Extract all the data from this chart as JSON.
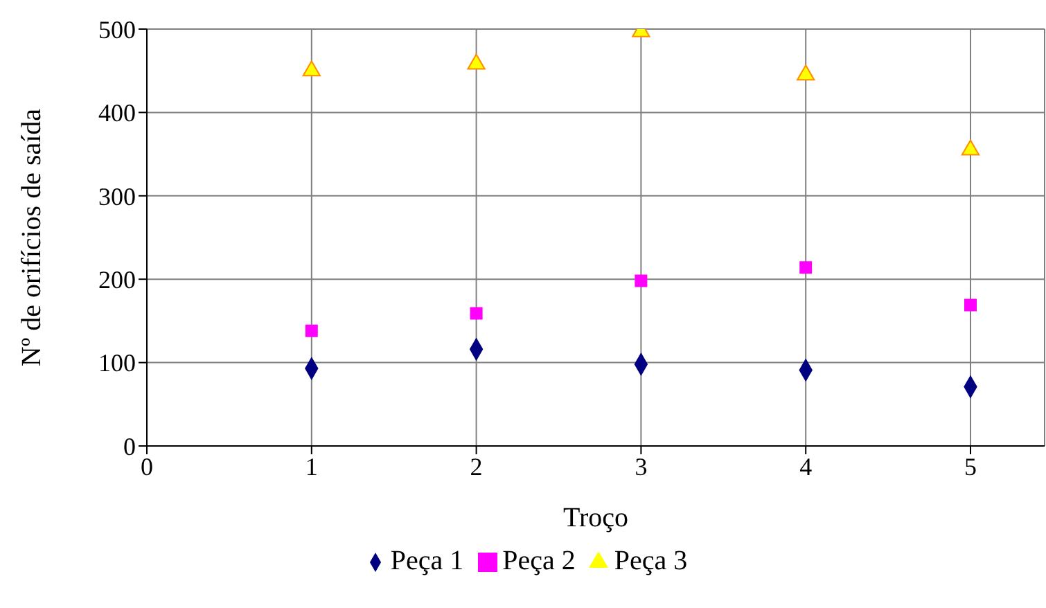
{
  "chart_data": {
    "type": "scatter",
    "xlabel": "Troço",
    "ylabel": "Nº de orifícios de saída",
    "x": [
      1,
      2,
      3,
      4,
      5
    ],
    "series": [
      {
        "name": "Peça 1",
        "color": "#000080",
        "marker": "diamond",
        "values": [
          93,
          116,
          98,
          91,
          71
        ]
      },
      {
        "name": "Peça 2",
        "color": "#ff00ff",
        "marker": "square",
        "values": [
          138,
          159,
          198,
          214,
          169
        ]
      },
      {
        "name": "Peça 3",
        "color": "#ffff00",
        "marker": "triangle",
        "values": [
          450,
          458,
          497,
          445,
          355
        ]
      }
    ],
    "xlim": [
      0,
      5.45
    ],
    "xticks": [
      0,
      1,
      2,
      3,
      4,
      5
    ],
    "ylim": [
      0,
      500
    ],
    "yticks": [
      0,
      100,
      200,
      300,
      400,
      500
    ],
    "grid": true,
    "legend": "bottom"
  }
}
